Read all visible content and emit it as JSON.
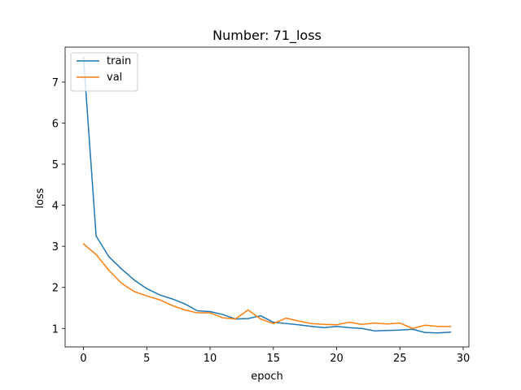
{
  "chart_data": {
    "type": "line",
    "title": "Number: 71_loss",
    "xlabel": "epoch",
    "ylabel": "loss",
    "xlim": [
      -1.45,
      30.45
    ],
    "ylim": [
      0.55,
      7.85
    ],
    "xticks": [
      0,
      5,
      10,
      15,
      20,
      25,
      30
    ],
    "yticks": [
      1,
      2,
      3,
      4,
      5,
      6,
      7
    ],
    "grid": false,
    "legend_position": "upper-left",
    "x": [
      0,
      1,
      2,
      3,
      4,
      5,
      6,
      7,
      8,
      9,
      10,
      11,
      12,
      13,
      14,
      15,
      16,
      17,
      18,
      19,
      20,
      21,
      22,
      23,
      24,
      25,
      26,
      27,
      28,
      29
    ],
    "series": [
      {
        "name": "train",
        "color": "#1f77b4",
        "values": [
          7.6,
          3.25,
          2.75,
          2.45,
          2.18,
          1.97,
          1.82,
          1.72,
          1.6,
          1.43,
          1.41,
          1.34,
          1.23,
          1.24,
          1.31,
          1.15,
          1.12,
          1.09,
          1.05,
          1.02,
          1.05,
          1.02,
          1.0,
          0.94,
          0.95,
          0.96,
          0.98,
          0.9,
          0.89,
          0.91
        ]
      },
      {
        "name": "val",
        "color": "#ff7f0e",
        "values": [
          3.06,
          2.8,
          2.42,
          2.1,
          1.9,
          1.79,
          1.7,
          1.56,
          1.45,
          1.38,
          1.38,
          1.26,
          1.23,
          1.45,
          1.23,
          1.12,
          1.25,
          1.18,
          1.12,
          1.1,
          1.09,
          1.15,
          1.1,
          1.13,
          1.11,
          1.13,
          1.0,
          1.08,
          1.05,
          1.05
        ]
      }
    ]
  }
}
